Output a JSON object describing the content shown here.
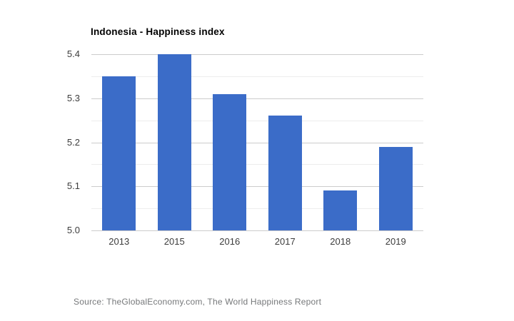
{
  "title": "Indonesia - Happiness index",
  "source_text": "Source: TheGlobalEconomy.com, The World Happiness Report",
  "colors": {
    "background": "#ffffff",
    "bar": "#3b6cc8",
    "grid_major": "#cccccc",
    "grid_minor": "#ededed",
    "title": "#000000",
    "axis_label": "#3c3c3c",
    "source": "#76787a"
  },
  "chart_data": {
    "type": "bar",
    "title": "Indonesia - Happiness index",
    "categories": [
      "2013",
      "2015",
      "2016",
      "2017",
      "2018",
      "2019"
    ],
    "values": [
      5.35,
      5.4,
      5.31,
      5.26,
      5.09,
      5.19
    ],
    "xlabel": "",
    "ylabel": "",
    "ylim": [
      5.0,
      5.4
    ],
    "yticks": [
      5.0,
      5.1,
      5.2,
      5.3,
      5.4
    ],
    "ytick_labels": [
      "5.0",
      "5.1",
      "5.2",
      "5.3",
      "5.4"
    ],
    "minor_ticks": [
      5.05,
      5.15,
      5.25,
      5.35
    ],
    "grid": true,
    "legend": "none",
    "bar_color": "#3b6cc8"
  }
}
